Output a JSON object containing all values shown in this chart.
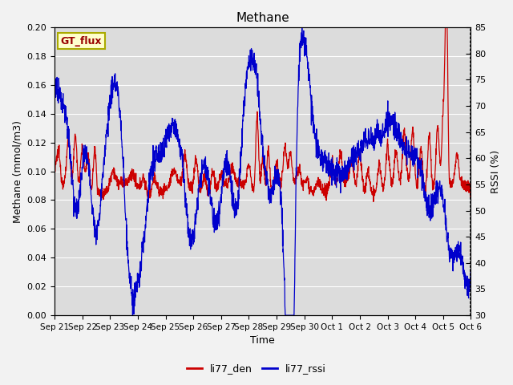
{
  "title": "Methane",
  "xlabel": "Time",
  "ylabel_left": "Methane (mmol/m3)",
  "ylabel_right": "RSSI (%)",
  "ylim_left": [
    0.0,
    0.2
  ],
  "ylim_right": [
    30,
    85
  ],
  "yticks_left": [
    0.0,
    0.02,
    0.04,
    0.06,
    0.08,
    0.1,
    0.12,
    0.14,
    0.16,
    0.18,
    0.2
  ],
  "yticks_right": [
    30,
    35,
    40,
    45,
    50,
    55,
    60,
    65,
    70,
    75,
    80,
    85
  ],
  "xtick_labels": [
    "Sep 21",
    "Sep 22",
    "Sep 23",
    "Sep 24",
    "Sep 25",
    "Sep 26",
    "Sep 27",
    "Sep 28",
    "Sep 29",
    "Sep 30",
    "Oct 1",
    "Oct 2",
    "Oct 3",
    "Oct 4",
    "Oct 5",
    "Oct 6"
  ],
  "color_red": "#CC0000",
  "color_blue": "#0000CC",
  "bg_color": "#DCDCDC",
  "fig_color": "#F2F2F2",
  "legend_label_red": "li77_den",
  "legend_label_blue": "li77_rssi",
  "box_label": "GT_flux",
  "box_fill": "#FFFFCC",
  "box_edge": "#AAAA00",
  "title_fontsize": 11,
  "axis_fontsize": 9,
  "tick_fontsize": 8
}
